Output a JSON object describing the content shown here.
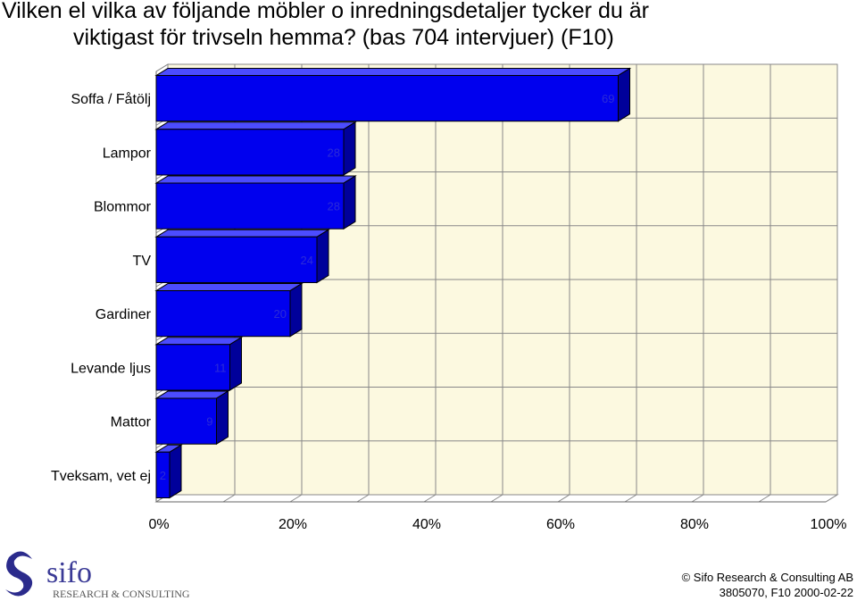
{
  "title": {
    "line1": "Vilken el vilka av följande möbler o inredningsdetaljer tycker du är",
    "line2": "viktigast för trivseln hemma? (bas 704 intervjuer) (F10)"
  },
  "chart_data": {
    "type": "bar",
    "orientation": "horizontal",
    "style": "3d",
    "categories": [
      "Soffa / Fåtölj",
      "Lampor",
      "Blommor",
      "TV",
      "Gardiner",
      "Levande ljus",
      "Mattor",
      "Tveksam, vet ej"
    ],
    "values": [
      69,
      28,
      28,
      24,
      20,
      11,
      9,
      2
    ],
    "xlim": [
      0,
      100
    ],
    "x_ticks": [
      "0%",
      "20%",
      "40%",
      "60%",
      "80%",
      "100%"
    ],
    "grid": true,
    "colors": {
      "bar_front": "#0000ee",
      "bar_top": "#4c4cff",
      "bar_side": "#00009a",
      "plot_back": "#fcf9e0",
      "data_label": "#2b2bd8"
    }
  },
  "footer": {
    "logo_text": "sifo",
    "logo_subtext": "RESEARCH & CONSULTING",
    "copyright": "© Sifo Research & Consulting AB",
    "docref": "3805070, F10   2000-02-22"
  }
}
